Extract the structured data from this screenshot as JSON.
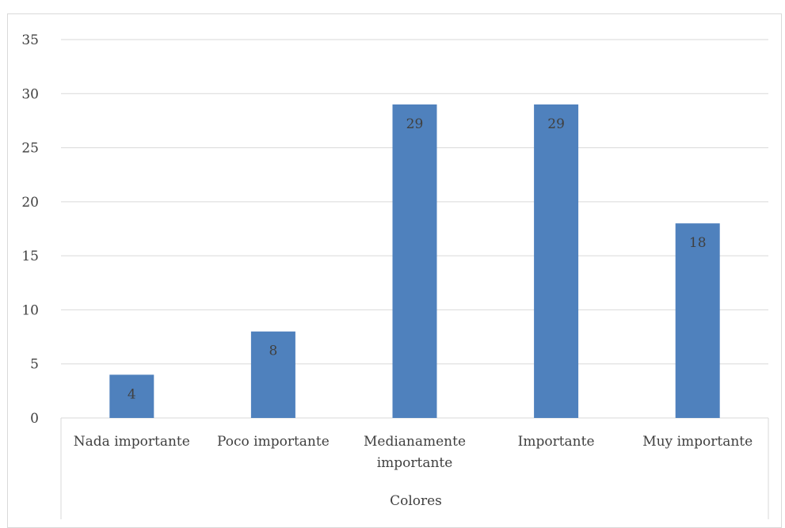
{
  "chart_data": {
    "type": "bar",
    "title": "",
    "xlabel": "",
    "ylabel": "",
    "group_label": "Colores",
    "categories": [
      [
        "Nada importante"
      ],
      [
        "Poco importante"
      ],
      [
        "Medianamente",
        "importante"
      ],
      [
        "Importante"
      ],
      [
        "Muy importante"
      ]
    ],
    "values": [
      4,
      8,
      29,
      29,
      18
    ],
    "data_labels": [
      "4",
      "8",
      "29",
      "29",
      "18"
    ],
    "ylim": [
      0,
      35
    ],
    "yticks": [
      0,
      5,
      10,
      15,
      20,
      25,
      30,
      35
    ],
    "grid": true,
    "legend": "none",
    "bar_color": "#4f81bd",
    "gridline_color": "#d9d9d9",
    "text_color": "#404040"
  }
}
